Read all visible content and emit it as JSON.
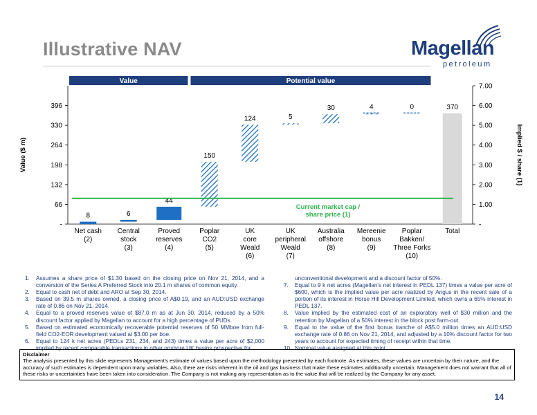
{
  "page": {
    "title": "Illustrative NAV",
    "page_number": "14"
  },
  "logo": {
    "word": "Magellan",
    "sub": "petroleum"
  },
  "chart_data": {
    "type": "bar",
    "subtype": "waterfall",
    "section_headers": [
      {
        "label": "Value",
        "spans": [
          "Net cash (2)",
          "Proved reserves (4)"
        ]
      },
      {
        "label": "Potential value",
        "spans": [
          "Poplar CO2 (5)",
          "Poplar Bakken/ Three Forks (10)"
        ]
      }
    ],
    "categories": [
      [
        "Net cash",
        "(2)"
      ],
      [
        "Central",
        "stock",
        "(3)"
      ],
      [
        "Proved",
        "reserves",
        "(4)"
      ],
      [
        "Poplar",
        "CO2",
        "(5)"
      ],
      [
        "UK",
        "core",
        "Weald",
        "(6)"
      ],
      [
        "UK",
        "peripheral",
        "Weald",
        "(7)"
      ],
      [
        "Australia",
        "offshore",
        "(8)"
      ],
      [
        "Mereenie",
        "bonus",
        "(9)"
      ],
      [
        "Poplar",
        "Bakken/",
        "Three Forks",
        "(10)"
      ],
      [
        "Total"
      ]
    ],
    "values": [
      8,
      6,
      44,
      150,
      124,
      5,
      30,
      4,
      0,
      370
    ],
    "value_labels": [
      "8",
      "6",
      "44",
      "150",
      "124",
      "5",
      "30",
      "4",
      "0",
      "370"
    ],
    "styles": [
      "solid",
      "solid",
      "solid",
      "hatched",
      "hatched",
      "hatched",
      "hatched",
      "hatched",
      "dashed",
      "total"
    ],
    "ylabel": "Value ($ m)",
    "y2label": "Implied $ / share (1)",
    "ylim": [
      0,
      462
    ],
    "yticks": [
      0,
      66,
      132,
      198,
      264,
      330,
      396
    ],
    "ytick_labels": [
      "-",
      "66",
      "132",
      "198",
      "264",
      "330",
      "396"
    ],
    "y2lim": [
      0,
      7
    ],
    "y2ticks": [
      0,
      1,
      2,
      3,
      4,
      5,
      6,
      7
    ],
    "y2tick_labels": [
      "-",
      "1.00",
      "2.00",
      "3.00",
      "4.00",
      "5.00",
      "6.00",
      "7.00"
    ],
    "reference_line": {
      "value": 86,
      "label": [
        "Current market cap /",
        "share price (1)"
      ]
    },
    "colors": {
      "solid": "#1f6fc5",
      "hatch": "#1f6fc5",
      "total": "#d9d9d9",
      "reference": "#2db34a",
      "header": "#1f3e7c",
      "axis": "#000000"
    },
    "grid": false
  },
  "footnotes": {
    "left": [
      {
        "num": "1.",
        "text": "Assumes a share price of $1.30 based on the closing price on Nov 21, 2014, and a conversion of the Series A Preferred Stock into 20.1 m shares of common equity."
      },
      {
        "num": "2.",
        "text": "Equal to cash net of debt and ARO at Sep 30, 2014."
      },
      {
        "num": "3.",
        "text": "Based on 39.5 m shares owned, a closing price of A$0.19, and an AUD:USD exchange rate of 0.86 on Nov 21, 2014."
      },
      {
        "num": "4.",
        "text": "Equal to a proved reserves value of $87.0 m as at Jun 30, 2014, reduced by a 50% discount factor applied by Magellan to account for a high percentage of PUDs."
      },
      {
        "num": "5.",
        "text": "Based on estimated economically recoverable potential reserves of 50 MMboe from full-field CO2-EOR development valued at $3.00 per boe."
      },
      {
        "num": "6.",
        "text": "Equal to 124 k net acres (PEDLs 231, 234, and 243) times a value per acre of $2,000 implied by recent comparable transactions in other onshore UK basins prospective for"
      }
    ],
    "right_continuation": "unconventional development and a discount factor of 50%.",
    "right": [
      {
        "num": "7.",
        "text": "Equal to 9 k net acres (Magellan's net interest in PEDL 137) times a value per acre of $600, which is the implied value per acre realized by Angus in the recent sale of a portion of its interest in Horse Hill Development Limited, which owns a 65% interest in PEDL 137."
      },
      {
        "num": "8.",
        "text": "Value implied by the estimated cost of an exploratory well of $30 million and the retention by Magellan of a 50% interest in the block post farm-out."
      },
      {
        "num": "9.",
        "text": "Equal to the value of the first bonus tranche of A$5.0 million times an AUD:USD exchange rate of 0.86 on Nov 21, 2014, and adjusted by a 10% discount factor for two years to account for expected timing of receipt within that time."
      },
      {
        "num": "10.",
        "text": "Nominal value assigned at this point."
      }
    ]
  },
  "disclaimer": {
    "title": "Disclaimer",
    "text": "The analysis presented by this slide represents Management's estimate of values based upon the methodology presented by each footnote.  As estimates, these values are uncertain by their nature, and the accuracy of such estimates is dependent upon many variables.  Also, there are risks inherent in the oil and gas business that make these estimates additionally uncertain.  Management does not warrant that all of these risks or uncertainties have been taken into consideration.  The Company is not making any representation as to the value that will be realized by the Company for any asset."
  }
}
